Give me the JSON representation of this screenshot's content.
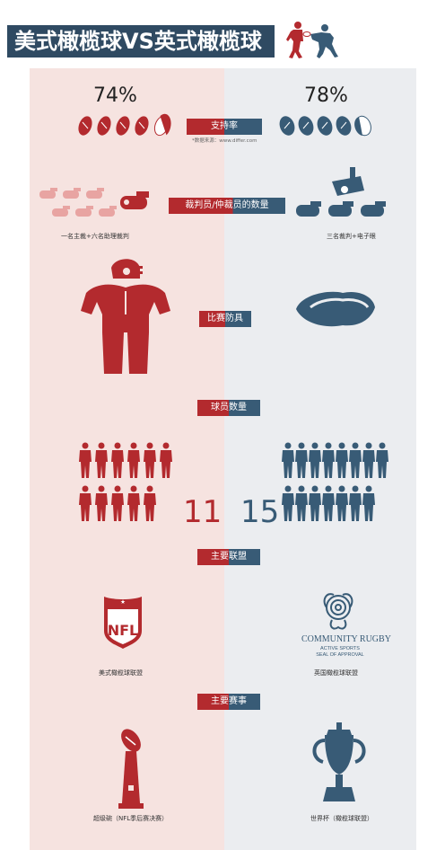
{
  "title": "美式橄榄球VS英式橄榄球",
  "colors": {
    "american": "#b32a2e",
    "british": "#385b76",
    "title_bg": "#2f4a62"
  },
  "support": {
    "label": "支持率",
    "source": "*数据来源：www.differ.com",
    "american_percent": "74%",
    "british_percent": "78%",
    "american_value": 0.74,
    "british_value": 0.78
  },
  "referees": {
    "label": "裁判员/仲裁员的数量",
    "american_caption": "一名主裁+六名助理裁判",
    "british_caption": "三名裁判+电子眼",
    "american_icon": "whistle-icon",
    "british_icon": "camera-icon"
  },
  "equipment": {
    "label": "比赛防具",
    "american_icon": "helmet-pads-icon",
    "british_icon": "mouthguard-icon"
  },
  "players": {
    "label": "球员数量",
    "american_count": "11",
    "british_count": "15"
  },
  "league": {
    "label": "主要联盟",
    "american_caption": "美式橄榄球联盟",
    "british_caption": "英国橄榄球联盟",
    "nfl_text": "NFL",
    "rugby_logo_title": "COMMUNITY RUGBY",
    "rugby_logo_sub1": "ACTIVE SPORTS",
    "rugby_logo_sub2": "SEAL OF APPROVAL"
  },
  "competition": {
    "label": "主要赛事",
    "american_caption": "超级碗（NFL季后赛决赛）",
    "british_caption": "世界杯（橄榄球联盟）"
  }
}
